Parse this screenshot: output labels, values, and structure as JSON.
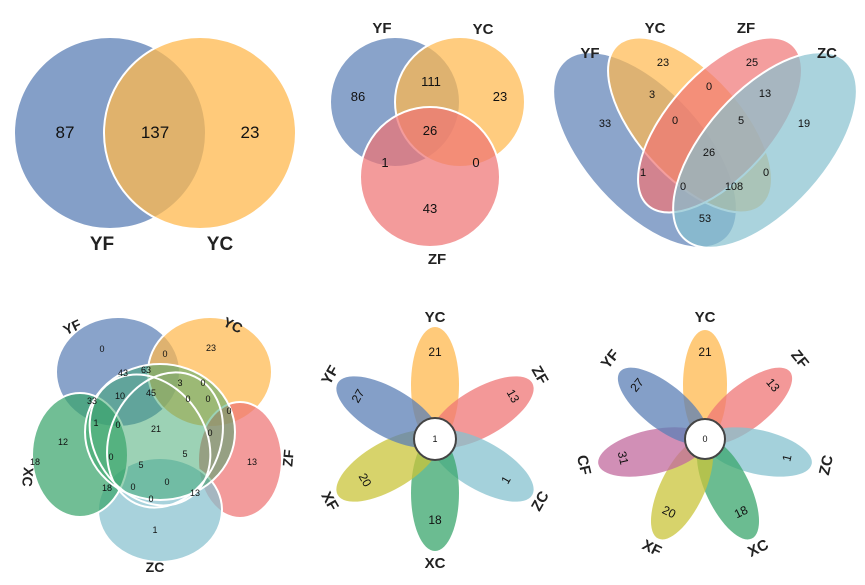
{
  "colors": {
    "YF": "#5b7fb5",
    "YC": "#ffb84d",
    "ZF": "#ef7575",
    "ZC": "#86c1cf",
    "XC": "#3aa56c",
    "XF": "#c9c43a",
    "CF": "#c26a9e",
    "stroke": "#ffffff"
  },
  "panel1": {
    "labels": {
      "YF": "YF",
      "YC": "YC"
    },
    "values": {
      "yf_only": "87",
      "both": "137",
      "yc_only": "23"
    }
  },
  "panel2": {
    "labels": {
      "YF": "YF",
      "YC": "YC",
      "ZF": "ZF"
    },
    "values": {
      "yf_only": "86",
      "yf_yc": "111",
      "yc_only": "23",
      "all": "26",
      "yf_zf": "1",
      "yc_zf": "0",
      "zf_only": "43"
    }
  },
  "panel3": {
    "labels": {
      "YF": "YF",
      "YC": "YC",
      "ZF": "ZF",
      "ZC": "ZC"
    },
    "values": [
      "33",
      "23",
      "25",
      "19",
      "3",
      "0",
      "13",
      "0",
      "5",
      "26",
      "0",
      "1",
      "0",
      "108",
      "53"
    ]
  },
  "panel4": {
    "labels": {
      "YF": "YF",
      "YC": "YC",
      "ZF": "ZF",
      "ZC": "ZC",
      "XC": "XC"
    },
    "values": [
      "0",
      "23",
      "13",
      "1",
      "18",
      "0",
      "43",
      "63",
      "3",
      "0",
      "33",
      "10",
      "45",
      "0",
      "0",
      "0",
      "12",
      "21",
      "1",
      "0",
      "0",
      "5",
      "0",
      "5",
      "18",
      "0",
      "0",
      "13",
      "0"
    ]
  },
  "panel5": {
    "labels": {
      "YC": "YC",
      "ZF": "ZF",
      "ZC": "ZC",
      "XC": "XC",
      "XF": "XF",
      "YF": "YF"
    },
    "petals": [
      "21",
      "13",
      "1",
      "18",
      "20",
      "27"
    ],
    "center": "1"
  },
  "panel6": {
    "labels": {
      "YC": "YC",
      "ZF": "ZF",
      "ZC": "ZC",
      "XC": "XC",
      "XF": "XF",
      "CF": "CF",
      "YF": "YF"
    },
    "petals": [
      "21",
      "13",
      "1",
      "18",
      "20",
      "31",
      "27"
    ],
    "center": "0"
  }
}
